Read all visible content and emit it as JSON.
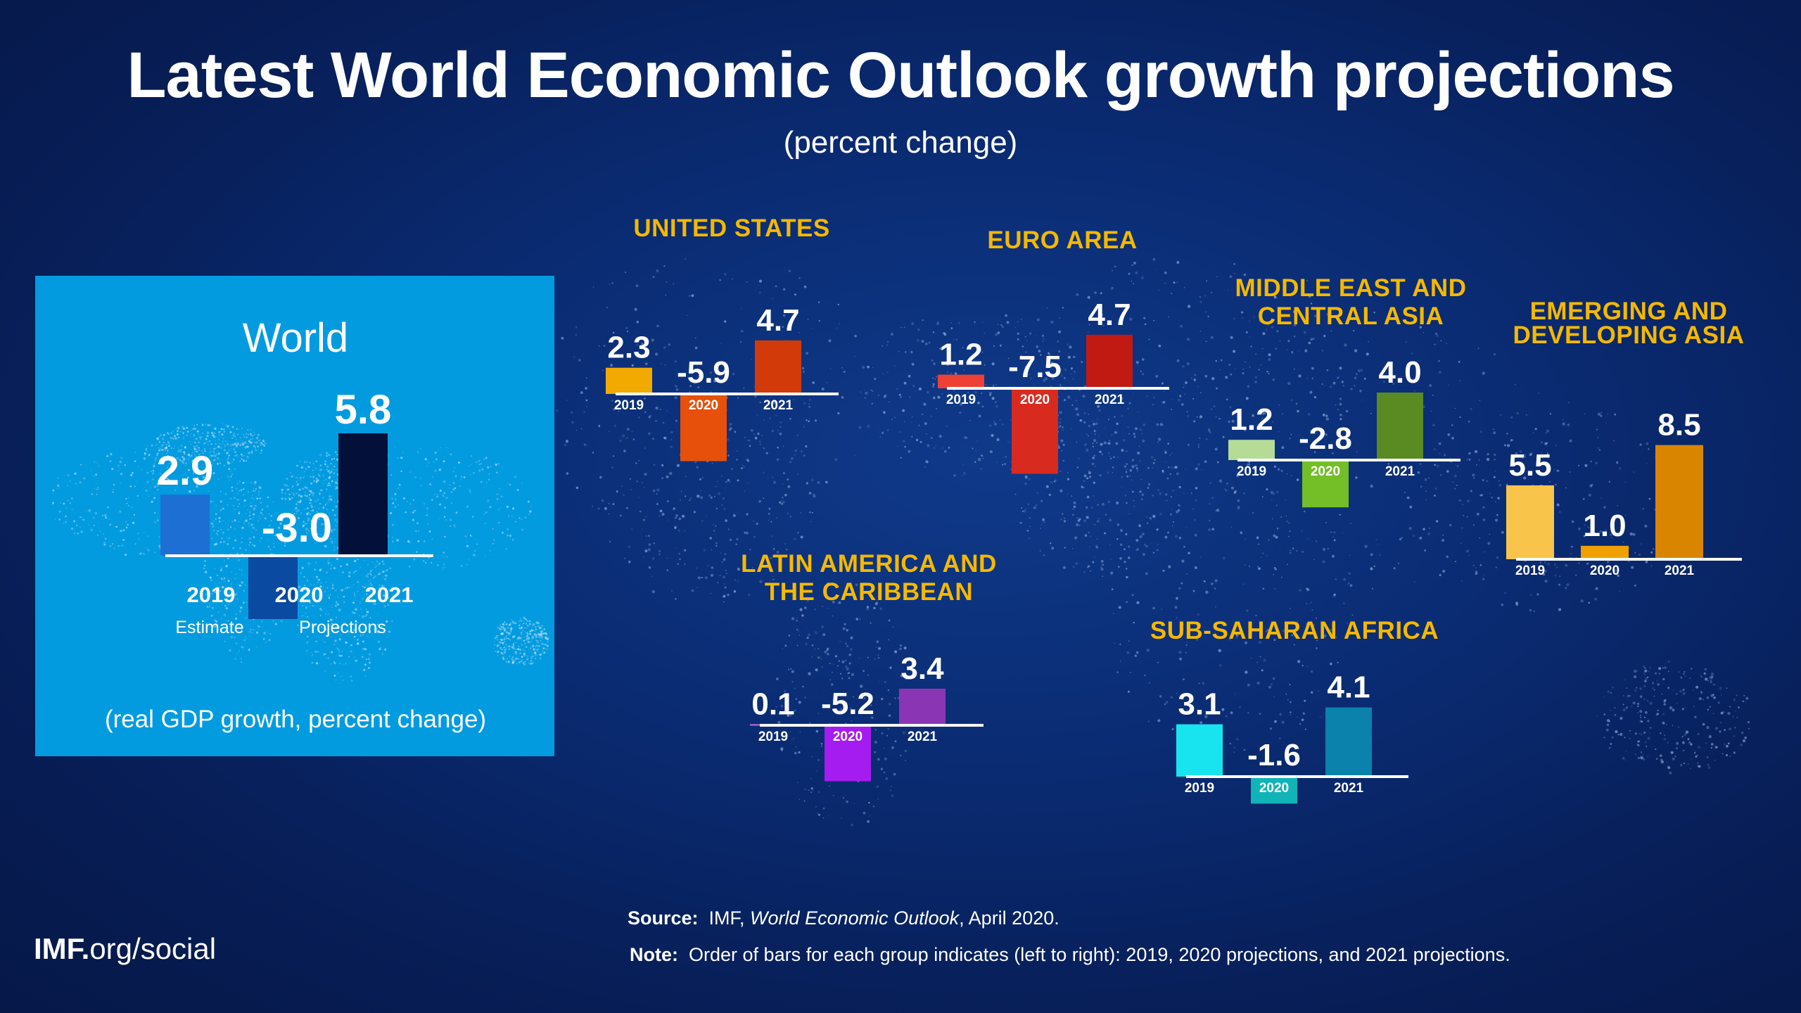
{
  "header": {
    "title": "Latest World Economic Outlook growth projections",
    "subtitle": "(percent change)"
  },
  "world_panel": {
    "title": "World",
    "estimate_label": "Estimate",
    "projections_label": "Projections",
    "caption": "(real GDP growth, percent change)"
  },
  "footer": {
    "source_label": "Source:",
    "source_text_pre": "IMF, ",
    "source_text_italic": "World Economic Outlook",
    "source_text_post": ", April 2020.",
    "note_label": "Note:",
    "note_text": "Order of bars for each group indicates (left to right): 2019, 2020 projections, and 2021 projections.",
    "brand_bold": "IMF.",
    "brand_rest": "org/social"
  },
  "chart_data": [
    {
      "type": "bar",
      "name": "World",
      "categories": [
        "2019",
        "2020",
        "2021"
      ],
      "values": [
        2.9,
        -3.0,
        5.8
      ],
      "labels": [
        "2.9",
        "-3.0",
        "5.8"
      ],
      "colors": [
        "#1e6fd4",
        "#0a4aa0",
        "#02103a"
      ],
      "axis_color": "#ffffff"
    },
    {
      "type": "bar",
      "name": "UNITED STATES",
      "categories": [
        "2019",
        "2020",
        "2021"
      ],
      "values": [
        2.3,
        -5.9,
        4.7
      ],
      "labels": [
        "2.3",
        "-5.9",
        "4.7"
      ],
      "colors": [
        "#f2a900",
        "#e6500a",
        "#d23a0a"
      ]
    },
    {
      "type": "bar",
      "name": "EURO AREA",
      "categories": [
        "2019",
        "2020",
        "2021"
      ],
      "values": [
        1.2,
        -7.5,
        4.7
      ],
      "labels": [
        "1.2",
        "-7.5",
        "4.7"
      ],
      "colors": [
        "#ee4034",
        "#d92a20",
        "#c01a12"
      ]
    },
    {
      "type": "bar",
      "name": "MIDDLE EAST AND CENTRAL ASIA",
      "categories": [
        "2019",
        "2020",
        "2021"
      ],
      "values": [
        1.2,
        -2.8,
        4.0
      ],
      "labels": [
        "1.2",
        "-2.8",
        "4.0"
      ],
      "colors": [
        "#b4dc96",
        "#74be28",
        "#5a8a22"
      ]
    },
    {
      "type": "bar",
      "name": "EMERGING AND DEVELOPING ASIA",
      "categories": [
        "2019",
        "2020",
        "2021"
      ],
      "values": [
        5.5,
        1.0,
        8.5
      ],
      "labels": [
        "5.5",
        "1.0",
        "8.5"
      ],
      "colors": [
        "#f8c44a",
        "#f0a000",
        "#d98500"
      ]
    },
    {
      "type": "bar",
      "name": "LATIN AMERICA AND THE CARIBBEAN",
      "categories": [
        "2019",
        "2020",
        "2021"
      ],
      "values": [
        0.1,
        -5.2,
        3.4
      ],
      "labels": [
        "0.1",
        "-5.2",
        "3.4"
      ],
      "colors": [
        "#c56df4",
        "#a51cf0",
        "#8a36b4"
      ]
    },
    {
      "type": "bar",
      "name": "SUB-SAHARAN AFRICA",
      "categories": [
        "2019",
        "2020",
        "2021"
      ],
      "values": [
        3.1,
        -1.6,
        4.1
      ],
      "labels": [
        "3.1",
        "-1.6",
        "4.1"
      ],
      "colors": [
        "#18e4f0",
        "#10b4b8",
        "#0a82ab"
      ]
    }
  ]
}
